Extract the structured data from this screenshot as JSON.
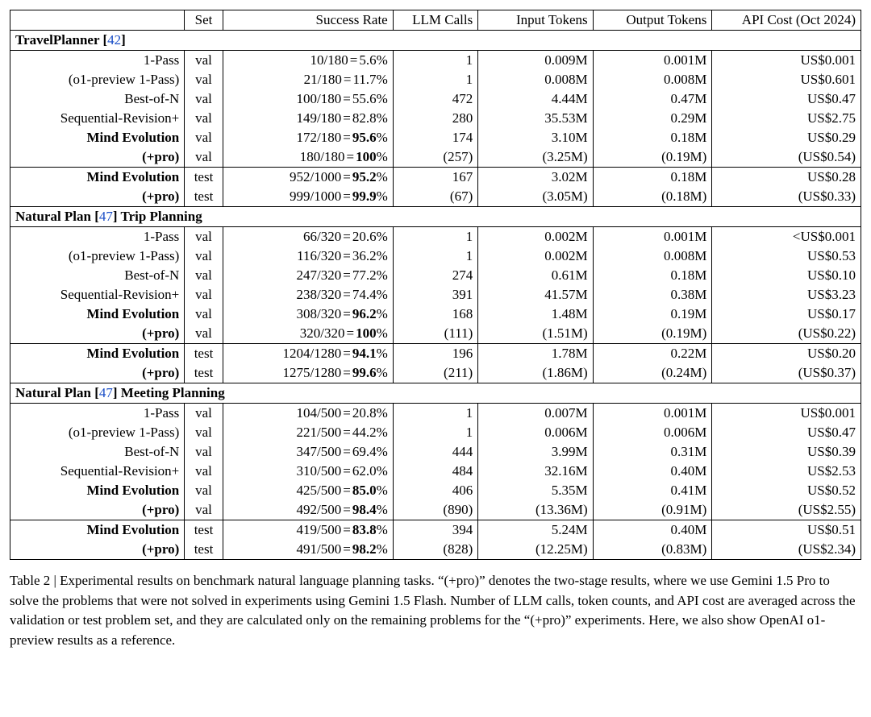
{
  "table": {
    "columns": {
      "method": "",
      "set": "Set",
      "success": "Success Rate",
      "llm": "LLM Calls",
      "itok": "Input Tokens",
      "otok": "Output Tokens",
      "cost": "API Cost (Oct 2024)"
    },
    "column_widths_pct": [
      20.5,
      4.5,
      20,
      10,
      13.5,
      14,
      17.5
    ],
    "cite_color": "#1a4ec7",
    "groups": [
      {
        "title_prefix": "TravelPlanner [",
        "cite": "42",
        "title_suffix": "]",
        "blocks": [
          [
            {
              "method": "1-Pass",
              "bold": false,
              "set": "val",
              "frac": "10/180",
              "pct": "5.6",
              "spct": false,
              "llm": "1",
              "itok": "0.009M",
              "otok": "0.001M",
              "cost": "US$0.001"
            },
            {
              "method": "(o1-preview 1-Pass)",
              "bold": false,
              "set": "val",
              "frac": "21/180",
              "pct": "11.7",
              "spct": false,
              "llm": "1",
              "itok": "0.008M",
              "otok": "0.008M",
              "cost": "US$0.601"
            },
            {
              "method": "Best-of-N",
              "bold": false,
              "set": "val",
              "frac": "100/180",
              "pct": "55.6",
              "spct": false,
              "llm": "472",
              "itok": "4.44M",
              "otok": "0.47M",
              "cost": "US$0.47"
            },
            {
              "method": "Sequential-Revision+",
              "bold": false,
              "set": "val",
              "frac": "149/180",
              "pct": "82.8",
              "spct": false,
              "llm": "280",
              "itok": "35.53M",
              "otok": "0.29M",
              "cost": "US$2.75"
            },
            {
              "method": "Mind Evolution",
              "bold": true,
              "set": "val",
              "frac": "172/180",
              "pct": "95.6",
              "spct": true,
              "llm": "174",
              "itok": "3.10M",
              "otok": "0.18M",
              "cost": "US$0.29"
            },
            {
              "method": "(+pro)",
              "bold": true,
              "set": "val",
              "frac": "180/180",
              "pct": "100",
              "spct": true,
              "llm": "(257)",
              "itok": "(3.25M)",
              "otok": "(0.19M)",
              "cost": "(US$0.54)"
            }
          ],
          [
            {
              "method": "Mind Evolution",
              "bold": true,
              "set": "test",
              "frac": "952/1000",
              "pct": "95.2",
              "spct": true,
              "llm": "167",
              "itok": "3.02M",
              "otok": "0.18M",
              "cost": "US$0.28"
            },
            {
              "method": "(+pro)",
              "bold": true,
              "set": "test",
              "frac": "999/1000",
              "pct": "99.9",
              "spct": true,
              "llm": "(67)",
              "itok": "(3.05M)",
              "otok": "(0.18M)",
              "cost": "(US$0.33)"
            }
          ]
        ]
      },
      {
        "title_prefix": "Natural Plan [",
        "cite": "47",
        "title_suffix": "] Trip Planning",
        "blocks": [
          [
            {
              "method": "1-Pass",
              "bold": false,
              "set": "val",
              "frac": "66/320",
              "pct": "20.6",
              "spct": false,
              "llm": "1",
              "itok": "0.002M",
              "otok": "0.001M",
              "cost": "<US$0.001"
            },
            {
              "method": "(o1-preview 1-Pass)",
              "bold": false,
              "set": "val",
              "frac": "116/320",
              "pct": "36.2",
              "spct": false,
              "llm": "1",
              "itok": "0.002M",
              "otok": "0.008M",
              "cost": "US$0.53"
            },
            {
              "method": "Best-of-N",
              "bold": false,
              "set": "val",
              "frac": "247/320",
              "pct": "77.2",
              "spct": false,
              "llm": "274",
              "itok": "0.61M",
              "otok": "0.18M",
              "cost": "US$0.10"
            },
            {
              "method": "Sequential-Revision+",
              "bold": false,
              "set": "val",
              "frac": "238/320",
              "pct": "74.4",
              "spct": false,
              "llm": "391",
              "itok": "41.57M",
              "otok": "0.38M",
              "cost": "US$3.23"
            },
            {
              "method": "Mind Evolution",
              "bold": true,
              "set": "val",
              "frac": "308/320",
              "pct": "96.2",
              "spct": true,
              "llm": "168",
              "itok": "1.48M",
              "otok": "0.19M",
              "cost": "US$0.17"
            },
            {
              "method": "(+pro)",
              "bold": true,
              "set": "val",
              "frac": "320/320",
              "pct": "100",
              "spct": true,
              "llm": "(111)",
              "itok": "(1.51M)",
              "otok": "(0.19M)",
              "cost": "(US$0.22)"
            }
          ],
          [
            {
              "method": "Mind Evolution",
              "bold": true,
              "set": "test",
              "frac": "1204/1280",
              "pct": "94.1",
              "spct": true,
              "llm": "196",
              "itok": "1.78M",
              "otok": "0.22M",
              "cost": "US$0.20"
            },
            {
              "method": "(+pro)",
              "bold": true,
              "set": "test",
              "frac": "1275/1280",
              "pct": "99.6",
              "spct": true,
              "llm": "(211)",
              "itok": "(1.86M)",
              "otok": "(0.24M)",
              "cost": "(US$0.37)"
            }
          ]
        ]
      },
      {
        "title_prefix": "Natural Plan [",
        "cite": "47",
        "title_suffix": "] Meeting Planning",
        "blocks": [
          [
            {
              "method": "1-Pass",
              "bold": false,
              "set": "val",
              "frac": "104/500",
              "pct": "20.8",
              "spct": false,
              "llm": "1",
              "itok": "0.007M",
              "otok": "0.001M",
              "cost": "US$0.001"
            },
            {
              "method": "(o1-preview 1-Pass)",
              "bold": false,
              "set": "val",
              "frac": "221/500",
              "pct": "44.2",
              "spct": false,
              "llm": "1",
              "itok": "0.006M",
              "otok": "0.006M",
              "cost": "US$0.47"
            },
            {
              "method": "Best-of-N",
              "bold": false,
              "set": "val",
              "frac": "347/500",
              "pct": "69.4",
              "spct": false,
              "llm": "444",
              "itok": "3.99M",
              "otok": "0.31M",
              "cost": "US$0.39"
            },
            {
              "method": "Sequential-Revision+",
              "bold": false,
              "set": "val",
              "frac": "310/500",
              "pct": "62.0",
              "spct": false,
              "llm": "484",
              "itok": "32.16M",
              "otok": "0.40M",
              "cost": "US$2.53"
            },
            {
              "method": "Mind Evolution",
              "bold": true,
              "set": "val",
              "frac": "425/500",
              "pct": "85.0",
              "spct": true,
              "llm": "406",
              "itok": "5.35M",
              "otok": "0.41M",
              "cost": "US$0.52"
            },
            {
              "method": "(+pro)",
              "bold": true,
              "set": "val",
              "frac": "492/500",
              "pct": "98.4",
              "spct": true,
              "llm": "(890)",
              "itok": "(13.36M)",
              "otok": "(0.91M)",
              "cost": "(US$2.55)"
            }
          ],
          [
            {
              "method": "Mind Evolution",
              "bold": true,
              "set": "test",
              "frac": "419/500",
              "pct": "83.8",
              "spct": true,
              "llm": "394",
              "itok": "5.24M",
              "otok": "0.40M",
              "cost": "US$0.51"
            },
            {
              "method": "(+pro)",
              "bold": true,
              "set": "test",
              "frac": "491/500",
              "pct": "98.2",
              "spct": true,
              "llm": "(828)",
              "itok": "(12.25M)",
              "otok": "(0.83M)",
              "cost": "(US$2.34)"
            }
          ]
        ]
      }
    ]
  },
  "caption": {
    "label": "Table 2",
    "sep": " | ",
    "text": "Experimental results on benchmark natural language planning tasks. “(+pro)” denotes the two-stage results, where we use Gemini 1.5 Pro to solve the problems that were not solved in experiments using Gemini 1.5 Flash. Number of LLM calls, token counts, and API cost are averaged across the validation or test problem set, and they are calculated only on the remaining problems for the “(+pro)” experiments. Here, we also show OpenAI o1-preview results as a reference."
  }
}
